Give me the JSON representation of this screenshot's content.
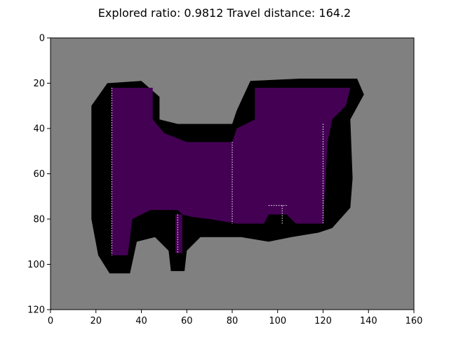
{
  "chart_data": {
    "type": "heatmap",
    "title": "Explored ratio: 0.9812  Travel distance: 164.2",
    "xlim": [
      0,
      160
    ],
    "ylim": [
      120,
      0
    ],
    "y_inverted": true,
    "x_ticks": [
      0,
      20,
      40,
      60,
      80,
      100,
      120,
      140,
      160
    ],
    "y_ticks": [
      0,
      20,
      40,
      60,
      80,
      100,
      120
    ],
    "grid": false,
    "legend": "none",
    "colors": {
      "unknown": "#808080",
      "obstacle": "#000000",
      "explored_free": "#440154",
      "travel_path": "#ffffff"
    },
    "regions": {
      "obstacle_outline": [
        [
          25,
          20
        ],
        [
          40,
          19
        ],
        [
          48,
          26
        ],
        [
          48,
          36
        ],
        [
          56,
          38
        ],
        [
          80,
          38
        ],
        [
          82,
          32
        ],
        [
          88,
          19
        ],
        [
          110,
          18
        ],
        [
          135,
          18
        ],
        [
          138,
          25
        ],
        [
          132,
          36
        ],
        [
          133,
          62
        ],
        [
          132,
          75
        ],
        [
          124,
          84
        ],
        [
          118,
          86
        ],
        [
          106,
          88
        ],
        [
          96,
          90
        ],
        [
          84,
          88
        ],
        [
          66,
          88
        ],
        [
          60,
          94
        ],
        [
          59,
          103
        ],
        [
          53,
          103
        ],
        [
          52,
          94
        ],
        [
          46,
          88
        ],
        [
          38,
          90
        ],
        [
          35,
          104
        ],
        [
          26,
          104
        ],
        [
          21,
          96
        ],
        [
          18,
          80
        ],
        [
          18,
          30
        ]
      ],
      "explored_main": [
        [
          27,
          22
        ],
        [
          45,
          22
        ],
        [
          45,
          36
        ],
        [
          50,
          42
        ],
        [
          60,
          46
        ],
        [
          80,
          46
        ],
        [
          82,
          40
        ],
        [
          90,
          36
        ],
        [
          90,
          22
        ],
        [
          132,
          22
        ],
        [
          130,
          30
        ],
        [
          124,
          36
        ],
        [
          122,
          46
        ],
        [
          120,
          82
        ],
        [
          108,
          82
        ],
        [
          104,
          78
        ],
        [
          96,
          78
        ],
        [
          94,
          82
        ],
        [
          82,
          82
        ],
        [
          70,
          80
        ],
        [
          62,
          79
        ],
        [
          58,
          78
        ],
        [
          56,
          76
        ],
        [
          44,
          76
        ],
        [
          36,
          80
        ],
        [
          34,
          96
        ],
        [
          27,
          96
        ]
      ],
      "explored_stub": [
        [
          55,
          78
        ],
        [
          58,
          78
        ],
        [
          58,
          95
        ],
        [
          55,
          95
        ]
      ]
    },
    "travel_path": [
      [
        [
          27,
          22
        ],
        [
          27,
          96
        ]
      ],
      [
        [
          80,
          46
        ],
        [
          80,
          82
        ]
      ],
      [
        [
          102,
          74
        ],
        [
          102,
          82
        ]
      ],
      [
        [
          120,
          38
        ],
        [
          120,
          82
        ]
      ],
      [
        [
          56,
          78
        ],
        [
          56,
          95
        ]
      ],
      [
        [
          96,
          74
        ],
        [
          104,
          74
        ]
      ]
    ]
  }
}
